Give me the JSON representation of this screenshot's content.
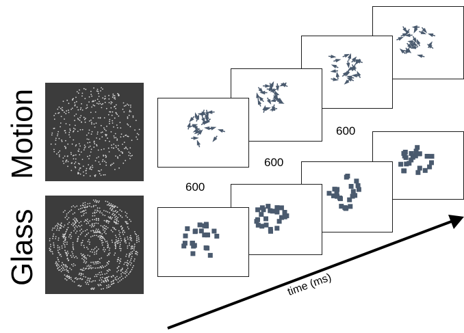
{
  "rows": {
    "motion_label": "Motion",
    "glass_label": "Glass"
  },
  "durations": [
    "600",
    "600",
    "600"
  ],
  "time_axis": {
    "label": "time (ms)"
  },
  "colors": {
    "stimulus_background": "#3c3c3c",
    "dot_color": "#4a5a6e",
    "frame_border": "#1a1a1a"
  }
}
